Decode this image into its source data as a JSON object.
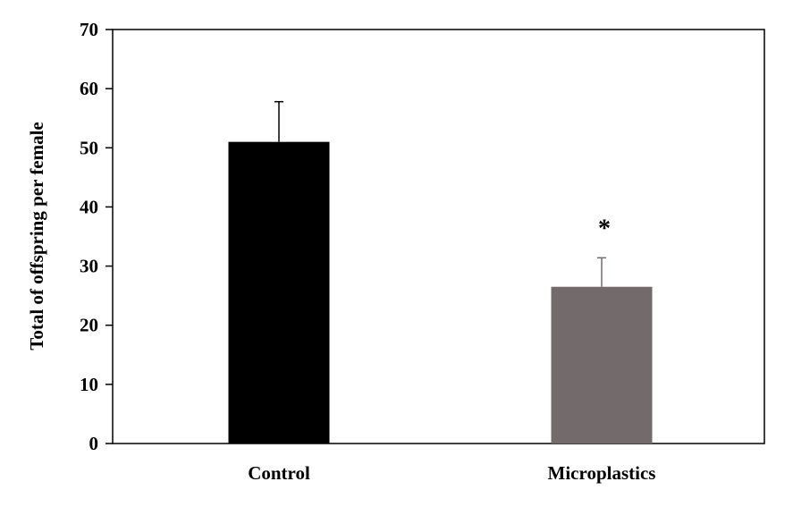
{
  "chart_data": {
    "type": "bar",
    "title": "",
    "xlabel": "",
    "ylabel": "Total of offspring per female",
    "categories": [
      "Control",
      "Microplastics"
    ],
    "values": [
      51,
      26.5
    ],
    "error_bars_upper": [
      6.8,
      4.9
    ],
    "bar_colors": [
      "#000000",
      "#736b6b"
    ],
    "annotations": [
      {
        "category": "Microplastics",
        "text": "*"
      }
    ],
    "ylim": [
      0,
      70
    ],
    "yticks": [
      0,
      10,
      20,
      30,
      40,
      50,
      60,
      70
    ],
    "grid": false,
    "legend": "none"
  }
}
